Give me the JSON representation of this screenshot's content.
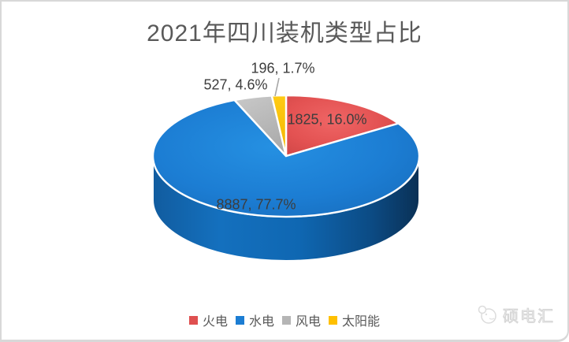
{
  "chart_data": {
    "type": "pie",
    "style": "3d-pie",
    "title": "2021年四川装机类型占比",
    "categories": [
      "火电",
      "水电",
      "风电",
      "太阳能"
    ],
    "values": [
      1825,
      8887,
      527,
      196
    ],
    "percents": [
      "16.0%",
      "77.7%",
      "4.6%",
      "1.7%"
    ],
    "slice_labels": [
      "1825, 16.0%",
      "8887, 77.7%",
      "527, 4.6%",
      "196, 1.7%"
    ],
    "colors": [
      "#DF5050",
      "#1C7DD3",
      "#B5B5B5",
      "#FFC000"
    ],
    "start_angle_deg": 0,
    "direction": "clockwise",
    "legend_position": "bottom",
    "label_placement": [
      "inside",
      "inside",
      "outside",
      "outside-with-leader"
    ]
  },
  "watermark": {
    "text": "硕电汇"
  }
}
